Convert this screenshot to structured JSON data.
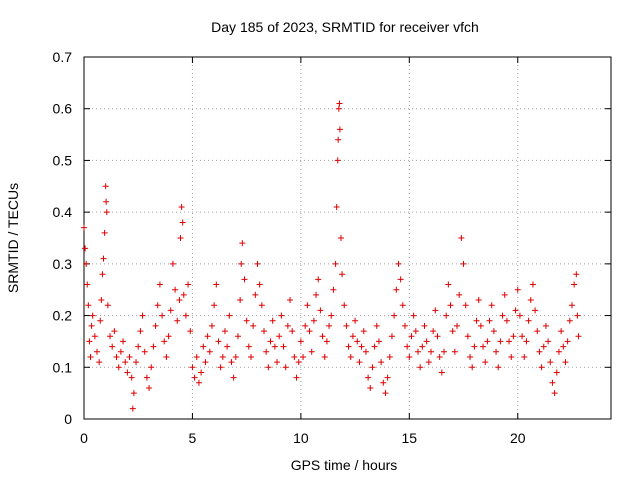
{
  "chart_data": {
    "type": "scatter",
    "title": "Day 185 of 2023, SRMTID for receiver vfch",
    "xlabel": "GPS time / hours",
    "ylabel": "SRMTID / TECUs",
    "xlim": [
      0,
      24.3
    ],
    "ylim": [
      0,
      0.7
    ],
    "xticks": [
      0,
      5,
      10,
      15,
      20
    ],
    "xtick_labels": [
      "0",
      "5",
      "10",
      "15",
      "20"
    ],
    "yticks": [
      0,
      0.1,
      0.2,
      0.3,
      0.4,
      0.5,
      0.6,
      0.7
    ],
    "ytick_labels": [
      "0",
      "0.1",
      "0.2",
      "0.3",
      "0.4",
      "0.5",
      "0.6",
      "0.7"
    ],
    "grid": true,
    "marker": "plus",
    "color": "#e00000",
    "series": [
      {
        "name": "SRMTID",
        "points": [
          [
            0.0,
            0.37
          ],
          [
            0.05,
            0.33
          ],
          [
            0.1,
            0.3
          ],
          [
            0.15,
            0.26
          ],
          [
            0.2,
            0.22
          ],
          [
            0.25,
            0.15
          ],
          [
            0.3,
            0.12
          ],
          [
            0.35,
            0.18
          ],
          [
            0.4,
            0.2
          ],
          [
            0.5,
            0.16
          ],
          [
            0.6,
            0.13
          ],
          [
            0.7,
            0.11
          ],
          [
            0.75,
            0.19
          ],
          [
            0.8,
            0.23
          ],
          [
            0.85,
            0.28
          ],
          [
            0.9,
            0.31
          ],
          [
            0.95,
            0.36
          ],
          [
            1.0,
            0.45
          ],
          [
            1.02,
            0.42
          ],
          [
            1.05,
            0.4
          ],
          [
            1.1,
            0.22
          ],
          [
            1.2,
            0.16
          ],
          [
            1.3,
            0.14
          ],
          [
            1.4,
            0.17
          ],
          [
            1.5,
            0.12
          ],
          [
            1.6,
            0.1
          ],
          [
            1.7,
            0.13
          ],
          [
            1.8,
            0.15
          ],
          [
            1.9,
            0.11
          ],
          [
            2.0,
            0.09
          ],
          [
            2.1,
            0.12
          ],
          [
            2.2,
            0.08
          ],
          [
            2.25,
            0.02
          ],
          [
            2.3,
            0.05
          ],
          [
            2.4,
            0.11
          ],
          [
            2.5,
            0.14
          ],
          [
            2.6,
            0.17
          ],
          [
            2.7,
            0.2
          ],
          [
            2.8,
            0.13
          ],
          [
            2.9,
            0.08
          ],
          [
            3.0,
            0.06
          ],
          [
            3.1,
            0.1
          ],
          [
            3.2,
            0.14
          ],
          [
            3.3,
            0.18
          ],
          [
            3.4,
            0.22
          ],
          [
            3.5,
            0.26
          ],
          [
            3.6,
            0.2
          ],
          [
            3.7,
            0.15
          ],
          [
            3.8,
            0.12
          ],
          [
            3.9,
            0.16
          ],
          [
            4.0,
            0.21
          ],
          [
            4.1,
            0.3
          ],
          [
            4.2,
            0.25
          ],
          [
            4.3,
            0.19
          ],
          [
            4.4,
            0.23
          ],
          [
            4.45,
            0.35
          ],
          [
            4.5,
            0.41
          ],
          [
            4.55,
            0.38
          ],
          [
            4.6,
            0.24
          ],
          [
            4.7,
            0.2
          ],
          [
            4.8,
            0.26
          ],
          [
            4.9,
            0.17
          ],
          [
            5.0,
            0.1
          ],
          [
            5.1,
            0.08
          ],
          [
            5.2,
            0.12
          ],
          [
            5.3,
            0.07
          ],
          [
            5.4,
            0.09
          ],
          [
            5.5,
            0.14
          ],
          [
            5.6,
            0.11
          ],
          [
            5.7,
            0.16
          ],
          [
            5.8,
            0.13
          ],
          [
            5.9,
            0.18
          ],
          [
            6.0,
            0.22
          ],
          [
            6.1,
            0.26
          ],
          [
            6.2,
            0.15
          ],
          [
            6.3,
            0.1
          ],
          [
            6.4,
            0.12
          ],
          [
            6.5,
            0.17
          ],
          [
            6.6,
            0.14
          ],
          [
            6.7,
            0.2
          ],
          [
            6.8,
            0.11
          ],
          [
            6.9,
            0.08
          ],
          [
            7.0,
            0.12
          ],
          [
            7.1,
            0.16
          ],
          [
            7.2,
            0.23
          ],
          [
            7.25,
            0.3
          ],
          [
            7.3,
            0.34
          ],
          [
            7.4,
            0.27
          ],
          [
            7.5,
            0.19
          ],
          [
            7.6,
            0.14
          ],
          [
            7.7,
            0.12
          ],
          [
            7.8,
            0.18
          ],
          [
            7.9,
            0.24
          ],
          [
            8.0,
            0.3
          ],
          [
            8.1,
            0.26
          ],
          [
            8.2,
            0.22
          ],
          [
            8.3,
            0.17
          ],
          [
            8.4,
            0.13
          ],
          [
            8.5,
            0.1
          ],
          [
            8.6,
            0.15
          ],
          [
            8.7,
            0.19
          ],
          [
            8.8,
            0.14
          ],
          [
            8.9,
            0.11
          ],
          [
            9.0,
            0.16
          ],
          [
            9.1,
            0.2
          ],
          [
            9.2,
            0.14
          ],
          [
            9.3,
            0.1
          ],
          [
            9.4,
            0.18
          ],
          [
            9.5,
            0.23
          ],
          [
            9.6,
            0.17
          ],
          [
            9.7,
            0.12
          ],
          [
            9.8,
            0.08
          ],
          [
            9.9,
            0.11
          ],
          [
            10.0,
            0.15
          ],
          [
            10.1,
            0.12
          ],
          [
            10.2,
            0.18
          ],
          [
            10.3,
            0.22
          ],
          [
            10.4,
            0.17
          ],
          [
            10.5,
            0.13
          ],
          [
            10.6,
            0.19
          ],
          [
            10.7,
            0.24
          ],
          [
            10.8,
            0.27
          ],
          [
            10.9,
            0.21
          ],
          [
            11.0,
            0.16
          ],
          [
            11.1,
            0.12
          ],
          [
            11.2,
            0.15
          ],
          [
            11.3,
            0.18
          ],
          [
            11.4,
            0.2
          ],
          [
            11.5,
            0.25
          ],
          [
            11.6,
            0.3
          ],
          [
            11.65,
            0.41
          ],
          [
            11.7,
            0.5
          ],
          [
            11.72,
            0.54
          ],
          [
            11.75,
            0.6
          ],
          [
            11.78,
            0.61
          ],
          [
            11.8,
            0.56
          ],
          [
            11.85,
            0.35
          ],
          [
            11.9,
            0.28
          ],
          [
            12.0,
            0.22
          ],
          [
            12.1,
            0.18
          ],
          [
            12.2,
            0.14
          ],
          [
            12.3,
            0.12
          ],
          [
            12.4,
            0.16
          ],
          [
            12.5,
            0.19
          ],
          [
            12.6,
            0.15
          ],
          [
            12.7,
            0.11
          ],
          [
            12.8,
            0.14
          ],
          [
            12.9,
            0.17
          ],
          [
            13.0,
            0.13
          ],
          [
            13.1,
            0.08
          ],
          [
            13.2,
            0.06
          ],
          [
            13.3,
            0.1
          ],
          [
            13.4,
            0.14
          ],
          [
            13.5,
            0.18
          ],
          [
            13.6,
            0.15
          ],
          [
            13.7,
            0.11
          ],
          [
            13.8,
            0.07
          ],
          [
            13.9,
            0.05
          ],
          [
            14.0,
            0.08
          ],
          [
            14.1,
            0.12
          ],
          [
            14.2,
            0.16
          ],
          [
            14.3,
            0.2
          ],
          [
            14.4,
            0.25
          ],
          [
            14.5,
            0.3
          ],
          [
            14.6,
            0.27
          ],
          [
            14.7,
            0.22
          ],
          [
            14.8,
            0.18
          ],
          [
            14.9,
            0.14
          ],
          [
            15.0,
            0.12
          ],
          [
            15.1,
            0.16
          ],
          [
            15.2,
            0.2
          ],
          [
            15.3,
            0.17
          ],
          [
            15.4,
            0.13
          ],
          [
            15.5,
            0.1
          ],
          [
            15.6,
            0.14
          ],
          [
            15.7,
            0.18
          ],
          [
            15.8,
            0.15
          ],
          [
            15.9,
            0.11
          ],
          [
            16.0,
            0.13
          ],
          [
            16.1,
            0.17
          ],
          [
            16.2,
            0.21
          ],
          [
            16.3,
            0.16
          ],
          [
            16.4,
            0.12
          ],
          [
            16.5,
            0.09
          ],
          [
            16.6,
            0.13
          ],
          [
            16.7,
            0.2
          ],
          [
            16.8,
            0.26
          ],
          [
            16.9,
            0.22
          ],
          [
            17.0,
            0.17
          ],
          [
            17.1,
            0.13
          ],
          [
            17.2,
            0.18
          ],
          [
            17.3,
            0.24
          ],
          [
            17.4,
            0.35
          ],
          [
            17.5,
            0.3
          ],
          [
            17.6,
            0.22
          ],
          [
            17.7,
            0.16
          ],
          [
            17.8,
            0.12
          ],
          [
            17.9,
            0.1
          ],
          [
            18.0,
            0.14
          ],
          [
            18.1,
            0.19
          ],
          [
            18.2,
            0.23
          ],
          [
            18.3,
            0.18
          ],
          [
            18.4,
            0.14
          ],
          [
            18.5,
            0.11
          ],
          [
            18.6,
            0.15
          ],
          [
            18.7,
            0.19
          ],
          [
            18.8,
            0.22
          ],
          [
            18.9,
            0.17
          ],
          [
            19.0,
            0.13
          ],
          [
            19.1,
            0.1
          ],
          [
            19.2,
            0.15
          ],
          [
            19.3,
            0.2
          ],
          [
            19.4,
            0.24
          ],
          [
            19.5,
            0.19
          ],
          [
            19.6,
            0.15
          ],
          [
            19.7,
            0.12
          ],
          [
            19.8,
            0.16
          ],
          [
            19.9,
            0.21
          ],
          [
            20.0,
            0.25
          ],
          [
            20.1,
            0.2
          ],
          [
            20.2,
            0.16
          ],
          [
            20.3,
            0.12
          ],
          [
            20.4,
            0.15
          ],
          [
            20.5,
            0.19
          ],
          [
            20.6,
            0.23
          ],
          [
            20.7,
            0.26
          ],
          [
            20.8,
            0.21
          ],
          [
            20.9,
            0.17
          ],
          [
            21.0,
            0.13
          ],
          [
            21.1,
            0.1
          ],
          [
            21.2,
            0.14
          ],
          [
            21.3,
            0.18
          ],
          [
            21.4,
            0.15
          ],
          [
            21.5,
            0.11
          ],
          [
            21.6,
            0.07
          ],
          [
            21.7,
            0.05
          ],
          [
            21.8,
            0.09
          ],
          [
            21.9,
            0.13
          ],
          [
            22.0,
            0.17
          ],
          [
            22.1,
            0.14
          ],
          [
            22.2,
            0.11
          ],
          [
            22.3,
            0.15
          ],
          [
            22.4,
            0.19
          ],
          [
            22.5,
            0.22
          ],
          [
            22.6,
            0.26
          ],
          [
            22.7,
            0.28
          ],
          [
            22.75,
            0.2
          ],
          [
            22.8,
            0.16
          ]
        ]
      }
    ]
  }
}
